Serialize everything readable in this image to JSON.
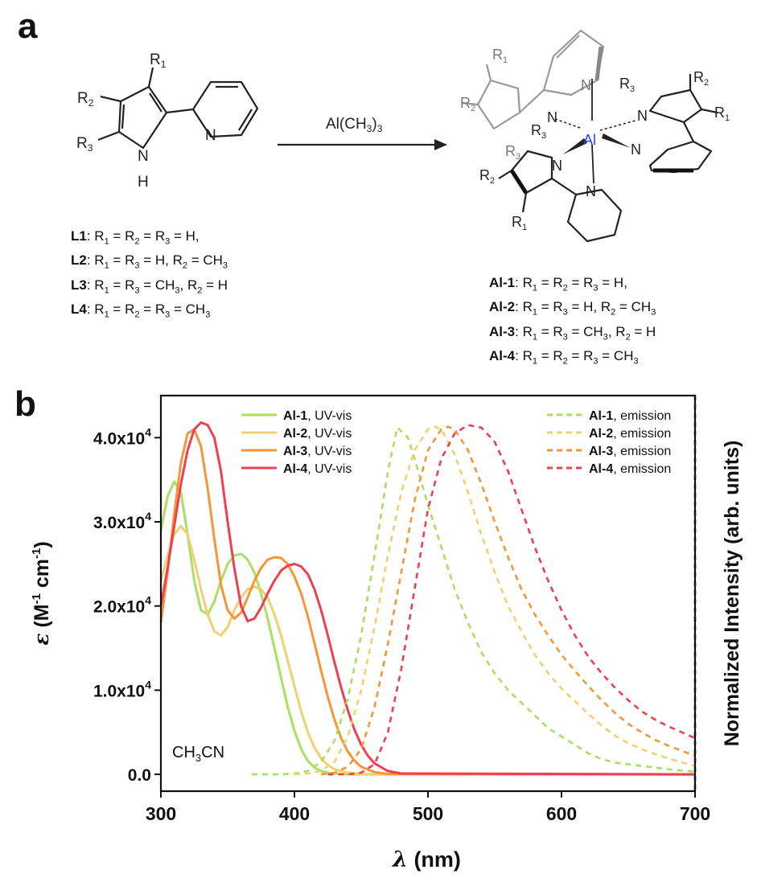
{
  "panel_a": {
    "label": "a",
    "ligand": {
      "substituents": [
        "R1",
        "R2",
        "R3"
      ],
      "nh_label": "N",
      "h_label": "H",
      "pyridine_n": "N"
    },
    "reagent": "Al(CH3)3",
    "complex": {
      "metal": "Al",
      "n_label": "N"
    },
    "ligand_list": [
      {
        "name": "L1",
        "def": ": R1 = R2 = R3 = H,"
      },
      {
        "name": "L2",
        "def": ": R1 = R3 = H, R2 = CH3"
      },
      {
        "name": "L3",
        "def": ": R1 = R3 = CH3, R2 = H"
      },
      {
        "name": "L4",
        "def": ": R1 = R2 = R3 = CH3"
      }
    ],
    "complex_list": [
      {
        "name": "Al-1",
        "def": ": R1 = R2 = R3 = H,"
      },
      {
        "name": "Al-2",
        "def": ": R1 = R3 = H, R2 = CH3"
      },
      {
        "name": "Al-3",
        "def": ": R1 = R3 = CH3, R2 = H"
      },
      {
        "name": "Al-4",
        "def": ": R1 = R2 = R3 = CH3"
      }
    ]
  },
  "panel_b": {
    "label": "b",
    "solvent_label": "CH3CN"
  },
  "chart_data": {
    "type": "line",
    "xlabel": "λ (nm)",
    "ylabel": "ε (M-1 cm-1)",
    "y2label": "Normalized Intensity (arb. units)",
    "xlim": [
      300,
      700
    ],
    "ylim": [
      -2000,
      45000
    ],
    "xticks": [
      "300",
      "400",
      "500",
      "600",
      "700"
    ],
    "yticks": [
      {
        "v": 0,
        "label": "0.0"
      },
      {
        "v": 10000,
        "label": "1.0x10"
      },
      {
        "v": 20000,
        "label": "2.0x10"
      },
      {
        "v": 30000,
        "label": "3.0x10"
      },
      {
        "v": 40000,
        "label": "4.0x10"
      }
    ],
    "ytick_exp": "4",
    "legend_left": [
      {
        "compound": "Al-1",
        "text": ", UV-vis",
        "color": "#a8e060"
      },
      {
        "compound": "Al-2",
        "text": ", UV-vis",
        "color": "#f2cf70"
      },
      {
        "compound": "Al-3",
        "text": ", UV-vis",
        "color": "#f59638"
      },
      {
        "compound": "Al-4",
        "text": ", UV-vis",
        "color": "#ee4050"
      }
    ],
    "legend_right": [
      {
        "compound": "Al-1",
        "text": ", emission",
        "color": "#a8e060"
      },
      {
        "compound": "Al-2",
        "text": ", emission",
        "color": "#f2cf70"
      },
      {
        "compound": "Al-3",
        "text": ", emission",
        "color": "#f59638"
      },
      {
        "compound": "Al-4",
        "text": ", emission",
        "color": "#ee4050"
      }
    ],
    "series": [
      {
        "name": "Al-1, UV-vis",
        "color": "#a8e060",
        "dash": false,
        "x": [
          300,
          305,
          310,
          315,
          320,
          325,
          330,
          335,
          340,
          345,
          350,
          355,
          360,
          365,
          370,
          375,
          380,
          385,
          390,
          395,
          400,
          405,
          410,
          415,
          420,
          425,
          430,
          440,
          450,
          700
        ],
        "y": [
          29000,
          33000,
          34800,
          33500,
          28500,
          23000,
          19500,
          19000,
          20500,
          23000,
          25000,
          26000,
          26200,
          25500,
          24000,
          21500,
          18500,
          15000,
          11500,
          8000,
          5200,
          3000,
          1600,
          800,
          400,
          200,
          100,
          0,
          0,
          0
        ]
      },
      {
        "name": "Al-2, UV-vis",
        "color": "#f2cf70",
        "dash": false,
        "x": [
          300,
          305,
          310,
          315,
          320,
          325,
          330,
          335,
          340,
          345,
          350,
          355,
          360,
          365,
          370,
          375,
          380,
          385,
          390,
          395,
          400,
          405,
          410,
          415,
          420,
          425,
          430,
          440,
          450,
          460,
          700
        ],
        "y": [
          23000,
          26000,
          28500,
          29500,
          28500,
          25500,
          22000,
          19000,
          17000,
          16500,
          17500,
          19500,
          21000,
          22000,
          22300,
          22000,
          21000,
          19000,
          16500,
          13500,
          10500,
          7500,
          5000,
          3200,
          1900,
          1100,
          600,
          200,
          50,
          0,
          0
        ]
      },
      {
        "name": "Al-3, UV-vis",
        "color": "#f59638",
        "dash": false,
        "x": [
          300,
          305,
          310,
          315,
          320,
          325,
          330,
          335,
          340,
          345,
          350,
          355,
          360,
          365,
          370,
          375,
          380,
          385,
          390,
          395,
          400,
          405,
          410,
          415,
          420,
          425,
          430,
          435,
          440,
          445,
          450,
          460,
          470,
          700
        ],
        "y": [
          18000,
          24000,
          31000,
          37000,
          40500,
          41000,
          39000,
          34000,
          28000,
          22500,
          19500,
          18500,
          19200,
          21000,
          23000,
          24500,
          25500,
          25800,
          25700,
          25000,
          23500,
          21500,
          18800,
          15600,
          12300,
          9200,
          6500,
          4300,
          2700,
          1600,
          900,
          250,
          50,
          0
        ]
      },
      {
        "name": "Al-4, UV-vis",
        "color": "#ee4050",
        "dash": false,
        "x": [
          300,
          305,
          310,
          315,
          320,
          325,
          330,
          335,
          340,
          345,
          350,
          355,
          360,
          365,
          370,
          375,
          380,
          385,
          390,
          395,
          400,
          405,
          410,
          415,
          420,
          425,
          430,
          435,
          440,
          445,
          450,
          455,
          460,
          470,
          480,
          700
        ],
        "y": [
          20000,
          24500,
          29500,
          34500,
          38500,
          41000,
          41800,
          41500,
          40000,
          36000,
          30000,
          24500,
          20000,
          18200,
          18500,
          19800,
          21500,
          23000,
          24200,
          24800,
          25000,
          24700,
          23800,
          22000,
          19500,
          16500,
          13300,
          10300,
          7600,
          5300,
          3500,
          2200,
          1300,
          400,
          100,
          0
        ]
      },
      {
        "name": "Al-1, emission",
        "color": "#a8e060",
        "dash": true,
        "x": [
          368,
          390,
          400,
          410,
          420,
          430,
          440,
          450,
          460,
          470,
          477,
          485,
          490,
          500,
          510,
          520,
          530,
          540,
          550,
          560,
          570,
          580,
          590,
          600,
          610,
          620,
          630,
          640,
          650,
          660,
          670,
          680,
          690,
          700
        ],
        "y": [
          0,
          0,
          100,
          400,
          1500,
          4000,
          9000,
          16500,
          26000,
          36000,
          41200,
          40000,
          37500,
          32000,
          27000,
          22000,
          18000,
          14500,
          12000,
          10000,
          8500,
          7000,
          5500,
          4500,
          3500,
          2500,
          1800,
          1400,
          1200,
          1000,
          800,
          600,
          450,
          300
        ]
      },
      {
        "name": "Al-2, emission",
        "color": "#f2cf70",
        "dash": true,
        "x": [
          400,
          410,
          420,
          430,
          440,
          450,
          460,
          470,
          480,
          490,
          500,
          505,
          510,
          520,
          530,
          540,
          550,
          560,
          570,
          580,
          590,
          600,
          610,
          620,
          630,
          640,
          650,
          660,
          670,
          680,
          690,
          700
        ],
        "y": [
          0,
          100,
          400,
          1500,
          4500,
          10000,
          17500,
          26000,
          33500,
          38500,
          41000,
          41300,
          41000,
          38000,
          33500,
          28500,
          24000,
          20000,
          17000,
          14200,
          12000,
          10200,
          8700,
          7200,
          5800,
          4600,
          3700,
          3000,
          2400,
          1900,
          1400,
          1000
        ]
      },
      {
        "name": "Al-3, emission",
        "color": "#f59638",
        "dash": true,
        "x": [
          420,
          430,
          440,
          450,
          460,
          470,
          480,
          490,
          500,
          510,
          515,
          520,
          530,
          540,
          550,
          560,
          570,
          580,
          590,
          600,
          610,
          620,
          630,
          640,
          650,
          660,
          670,
          680,
          690,
          700
        ],
        "y": [
          0,
          200,
          900,
          3000,
          8000,
          15500,
          24000,
          32500,
          38500,
          41000,
          41300,
          41000,
          38500,
          34500,
          30000,
          25800,
          22000,
          19000,
          16500,
          14200,
          12300,
          10500,
          8800,
          7300,
          6000,
          5000,
          4100,
          3400,
          2800,
          2200
        ]
      },
      {
        "name": "Al-4, emission",
        "color": "#ee4050",
        "dash": true,
        "x": [
          425,
          440,
          450,
          460,
          470,
          480,
          490,
          500,
          510,
          520,
          525,
          530,
          540,
          550,
          560,
          570,
          580,
          590,
          600,
          610,
          620,
          630,
          640,
          650,
          660,
          670,
          680,
          690,
          700
        ],
        "y": [
          0,
          0,
          200,
          1200,
          5000,
          12500,
          22000,
          31500,
          37500,
          40500,
          41000,
          41500,
          41200,
          39500,
          36000,
          31500,
          27000,
          23000,
          19500,
          16500,
          14000,
          12000,
          10300,
          8800,
          7500,
          6500,
          5700,
          5000,
          4300
        ]
      }
    ]
  }
}
